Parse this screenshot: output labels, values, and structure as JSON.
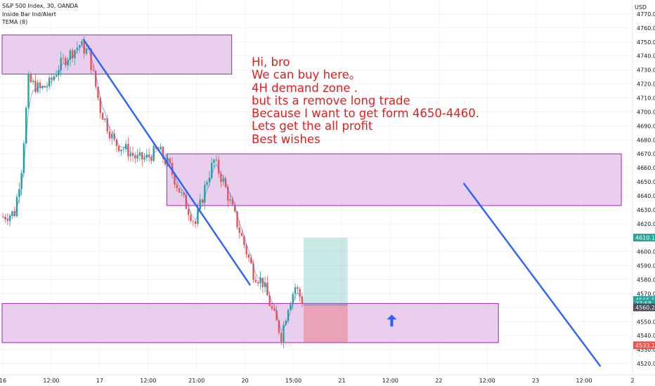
{
  "header": {
    "symbol_line": "S&P 500 Index, 30, OANDA",
    "indicator_1": "Inside Bar Ind/Alert",
    "indicator_2": "TEMA (8)"
  },
  "currency": "USD",
  "note": [
    "Hi,  bro",
    "We can buy here。",
    "4H  demand zone  .",
    "but  its a  remove long trade",
    "Because  I  want to  get form 4650-4460.",
    "Lets  get  the  all profit",
    "Best wishes"
  ],
  "colors": {
    "up": "#26a69a",
    "down": "#ef5350",
    "zone": "#e1bee7",
    "zone_border": "#9c27b0",
    "trend": "#2962ff",
    "text": "#e01e1e"
  },
  "chart_data": {
    "type": "candlestick",
    "ylim": [
      4512,
      4780
    ],
    "y_ticks": [
      4520,
      4530,
      4540,
      4550,
      4560,
      4570,
      4580,
      4590,
      4600,
      4610,
      4620,
      4630,
      4640,
      4650,
      4660,
      4670,
      4680,
      4690,
      4700,
      4710,
      4720,
      4730,
      4740,
      4750,
      4760,
      4770
    ],
    "x_ticks": [
      "16",
      "12:00",
      "17",
      "12:00",
      "21:00",
      "20",
      "15:00",
      "21",
      "12:00",
      "22",
      "12:00",
      "23",
      "12:00",
      "2"
    ],
    "price_labels": [
      {
        "value": "4610.1",
        "price": 4610.1,
        "color": "#26a69a"
      },
      {
        "value": "4565.5",
        "price": 4565.5,
        "color": "#26a69a"
      },
      {
        "value": "27:58",
        "price": 4563.0,
        "color": "#26a69a"
      },
      {
        "value": "4560.2",
        "price": 4560.2,
        "color": "#4a4e59"
      },
      {
        "value": "4533.1",
        "price": 4533.1,
        "color": "#ef5350"
      }
    ],
    "zones": [
      {
        "name": "supply-zone-top",
        "x": [
          0,
          99
        ],
        "y": [
          4727,
          4755
        ]
      },
      {
        "name": "supply-zone-mid",
        "x": [
          71,
          267
        ],
        "y": [
          4633,
          4670
        ]
      },
      {
        "name": "demand-zone",
        "x": [
          0,
          214
        ],
        "y": [
          4535,
          4563
        ]
      }
    ],
    "position": {
      "x": [
        130,
        149
      ],
      "entry": 4562,
      "target": 4610,
      "stop": 4535
    },
    "trend_lines": [
      {
        "x": [
          35,
          107
        ],
        "y": [
          4752,
          4576
        ]
      },
      {
        "x": [
          199,
          258
        ],
        "y": [
          4649,
          4518
        ]
      }
    ],
    "arrow": {
      "x": 168,
      "y": 4550
    },
    "candle_count": 130
  }
}
